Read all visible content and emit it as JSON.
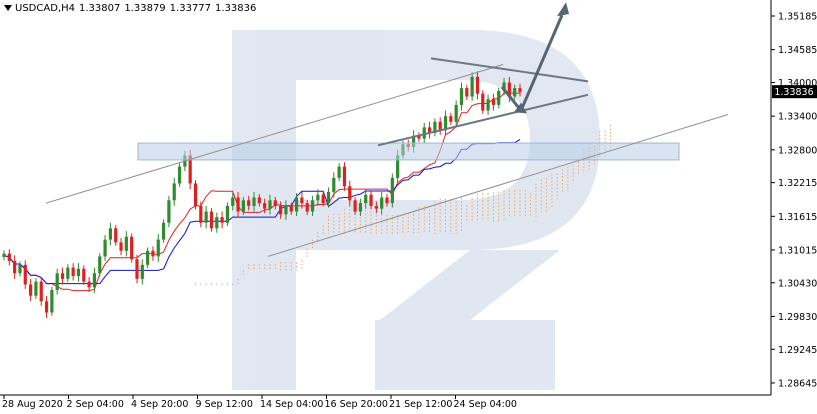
{
  "header": {
    "symbol": "USDCAD,H4",
    "ohlc": [
      "1.33807",
      "1.33879",
      "1.33777",
      "1.33836"
    ]
  },
  "colors": {
    "bull": "#2e8b2e",
    "bear": "#e02020",
    "tenkan": "#e02020",
    "kijun": "#1010d0",
    "kumo_a": "#f4a460",
    "kumo_b": "#c9a0dc",
    "channel": "#909090",
    "arrow": "#566573",
    "zone": "#b8cde6",
    "label_bg": "#000000"
  },
  "chart_data": {
    "type": "candlestick",
    "instrument": "USDCAD",
    "timeframe": "H4",
    "ylim": [
      1.2843,
      1.3547
    ],
    "current_price": "1.33836",
    "y_ticks": [
      "1.35185",
      "1.34585",
      "1.34000",
      "1.33400",
      "1.32800",
      "1.32215",
      "1.31615",
      "1.31015",
      "1.30430",
      "1.29830",
      "1.29245",
      "1.28645"
    ],
    "x_ticks": [
      "28 Aug 2020",
      "2 Sep 04:00",
      "4 Sep 20:00",
      "9 Sep 12:00",
      "14 Sep 04:00",
      "16 Sep 20:00",
      "21 Sep 12:00",
      "24 Sep 04:00"
    ],
    "candles": [
      {
        "c": 1.3095
      },
      {
        "c": 1.3082
      },
      {
        "c": 1.306
      },
      {
        "c": 1.3075
      },
      {
        "c": 1.304
      },
      {
        "c": 1.302
      },
      {
        "c": 1.3045
      },
      {
        "c": 1.301
      },
      {
        "c": 1.299
      },
      {
        "c": 1.303
      },
      {
        "c": 1.306
      },
      {
        "c": 1.305
      },
      {
        "c": 1.307
      },
      {
        "c": 1.3055
      },
      {
        "c": 1.3068
      },
      {
        "c": 1.3045
      },
      {
        "c": 1.3035
      },
      {
        "c": 1.306
      },
      {
        "c": 1.309
      },
      {
        "c": 1.312
      },
      {
        "c": 1.314
      },
      {
        "c": 1.3115
      },
      {
        "c": 1.31
      },
      {
        "c": 1.3125
      },
      {
        "c": 1.3085
      },
      {
        "c": 1.305
      },
      {
        "c": 1.3075
      },
      {
        "c": 1.31
      },
      {
        "c": 1.309
      },
      {
        "c": 1.312
      },
      {
        "c": 1.315
      },
      {
        "c": 1.319
      },
      {
        "c": 1.322
      },
      {
        "c": 1.325
      },
      {
        "c": 1.327
      },
      {
        "c": 1.322
      },
      {
        "c": 1.318
      },
      {
        "c": 1.315
      },
      {
        "c": 1.317
      },
      {
        "c": 1.314
      },
      {
        "c": 1.316
      },
      {
        "c": 1.315
      },
      {
        "c": 1.318
      },
      {
        "c": 1.3195
      },
      {
        "c": 1.317
      },
      {
        "c": 1.319
      },
      {
        "c": 1.318
      },
      {
        "c": 1.3195
      },
      {
        "c": 1.3185
      },
      {
        "c": 1.3175
      },
      {
        "c": 1.319
      },
      {
        "c": 1.318
      },
      {
        "c": 1.3165
      },
      {
        "c": 1.318
      },
      {
        "c": 1.317
      },
      {
        "c": 1.3195
      },
      {
        "c": 1.3185
      },
      {
        "c": 1.317
      },
      {
        "c": 1.319
      },
      {
        "c": 1.32
      },
      {
        "c": 1.3185
      },
      {
        "c": 1.3205
      },
      {
        "c": 1.323
      },
      {
        "c": 1.325
      },
      {
        "c": 1.3215
      },
      {
        "c": 1.319
      },
      {
        "c": 1.317
      },
      {
        "c": 1.3185
      },
      {
        "c": 1.32
      },
      {
        "c": 1.318
      },
      {
        "c": 1.3175
      },
      {
        "c": 1.3195
      },
      {
        "c": 1.3185
      },
      {
        "c": 1.323
      },
      {
        "c": 1.327
      },
      {
        "c": 1.329
      },
      {
        "c": 1.3285
      },
      {
        "c": 1.3305
      },
      {
        "c": 1.33
      },
      {
        "c": 1.332
      },
      {
        "c": 1.331
      },
      {
        "c": 1.333
      },
      {
        "c": 1.3315
      },
      {
        "c": 1.334
      },
      {
        "c": 1.333
      },
      {
        "c": 1.336
      },
      {
        "c": 1.339
      },
      {
        "c": 1.3375
      },
      {
        "c": 1.341
      },
      {
        "c": 1.338
      },
      {
        "c": 1.335
      },
      {
        "c": 1.337
      },
      {
        "c": 1.336
      },
      {
        "c": 1.3385
      },
      {
        "c": 1.34
      },
      {
        "c": 1.3375
      },
      {
        "c": 1.339
      },
      {
        "c": 1.3383
      }
    ]
  }
}
